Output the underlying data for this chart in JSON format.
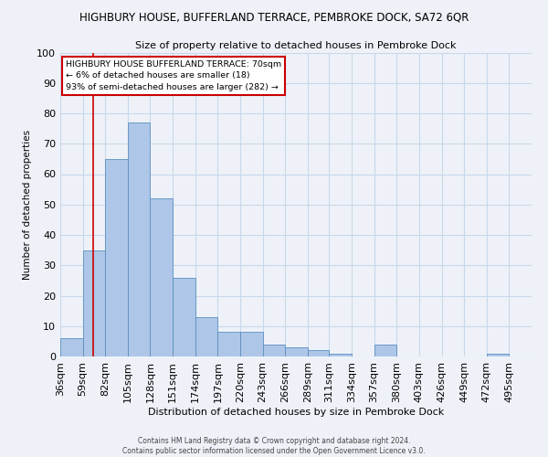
{
  "title": "HIGHBURY HOUSE, BUFFERLAND TERRACE, PEMBROKE DOCK, SA72 6QR",
  "subtitle": "Size of property relative to detached houses in Pembroke Dock",
  "xlabel": "Distribution of detached houses by size in Pembroke Dock",
  "ylabel": "Number of detached properties",
  "bar_left_edges": [
    36,
    59,
    82,
    105,
    128,
    151,
    174,
    197,
    220,
    243,
    266,
    289,
    311,
    334,
    357,
    380,
    403,
    426,
    449,
    472
  ],
  "bar_widths": [
    23,
    23,
    23,
    23,
    23,
    23,
    23,
    23,
    23,
    23,
    23,
    22,
    23,
    23,
    23,
    23,
    23,
    23,
    23,
    23
  ],
  "bar_heights": [
    6,
    35,
    65,
    77,
    52,
    26,
    13,
    8,
    8,
    4,
    3,
    2,
    1,
    0,
    4,
    0,
    0,
    0,
    0,
    1
  ],
  "bar_color": "#aec6e8",
  "bar_edge_color": "#5a8fc0",
  "tick_labels": [
    "36sqm",
    "59sqm",
    "82sqm",
    "105sqm",
    "128sqm",
    "151sqm",
    "174sqm",
    "197sqm",
    "220sqm",
    "243sqm",
    "266sqm",
    "289sqm",
    "311sqm",
    "334sqm",
    "357sqm",
    "380sqm",
    "403sqm",
    "426sqm",
    "449sqm",
    "472sqm",
    "495sqm"
  ],
  "tick_positions": [
    36,
    59,
    82,
    105,
    128,
    151,
    174,
    197,
    220,
    243,
    266,
    289,
    311,
    334,
    357,
    380,
    403,
    426,
    449,
    472,
    495
  ],
  "ylim": [
    0,
    100
  ],
  "xlim": [
    36,
    518
  ],
  "yticks": [
    0,
    10,
    20,
    30,
    40,
    50,
    60,
    70,
    80,
    90,
    100
  ],
  "vline_x": 70,
  "vline_color": "#cc0000",
  "annotation_title": "HIGHBURY HOUSE BUFFERLAND TERRACE: 70sqm",
  "annotation_line2": "← 6% of detached houses are smaller (18)",
  "annotation_line3": "93% of semi-detached houses are larger (282) →",
  "annotation_box_color": "#ffffff",
  "annotation_box_edge_color": "#cc0000",
  "grid_color": "#c8d8ea",
  "background_color": "#eef2f8",
  "footnote1": "Contains HM Land Registry data © Crown copyright and database right 2024.",
  "footnote2": "Contains public sector information licensed under the Open Government Licence v3.0."
}
